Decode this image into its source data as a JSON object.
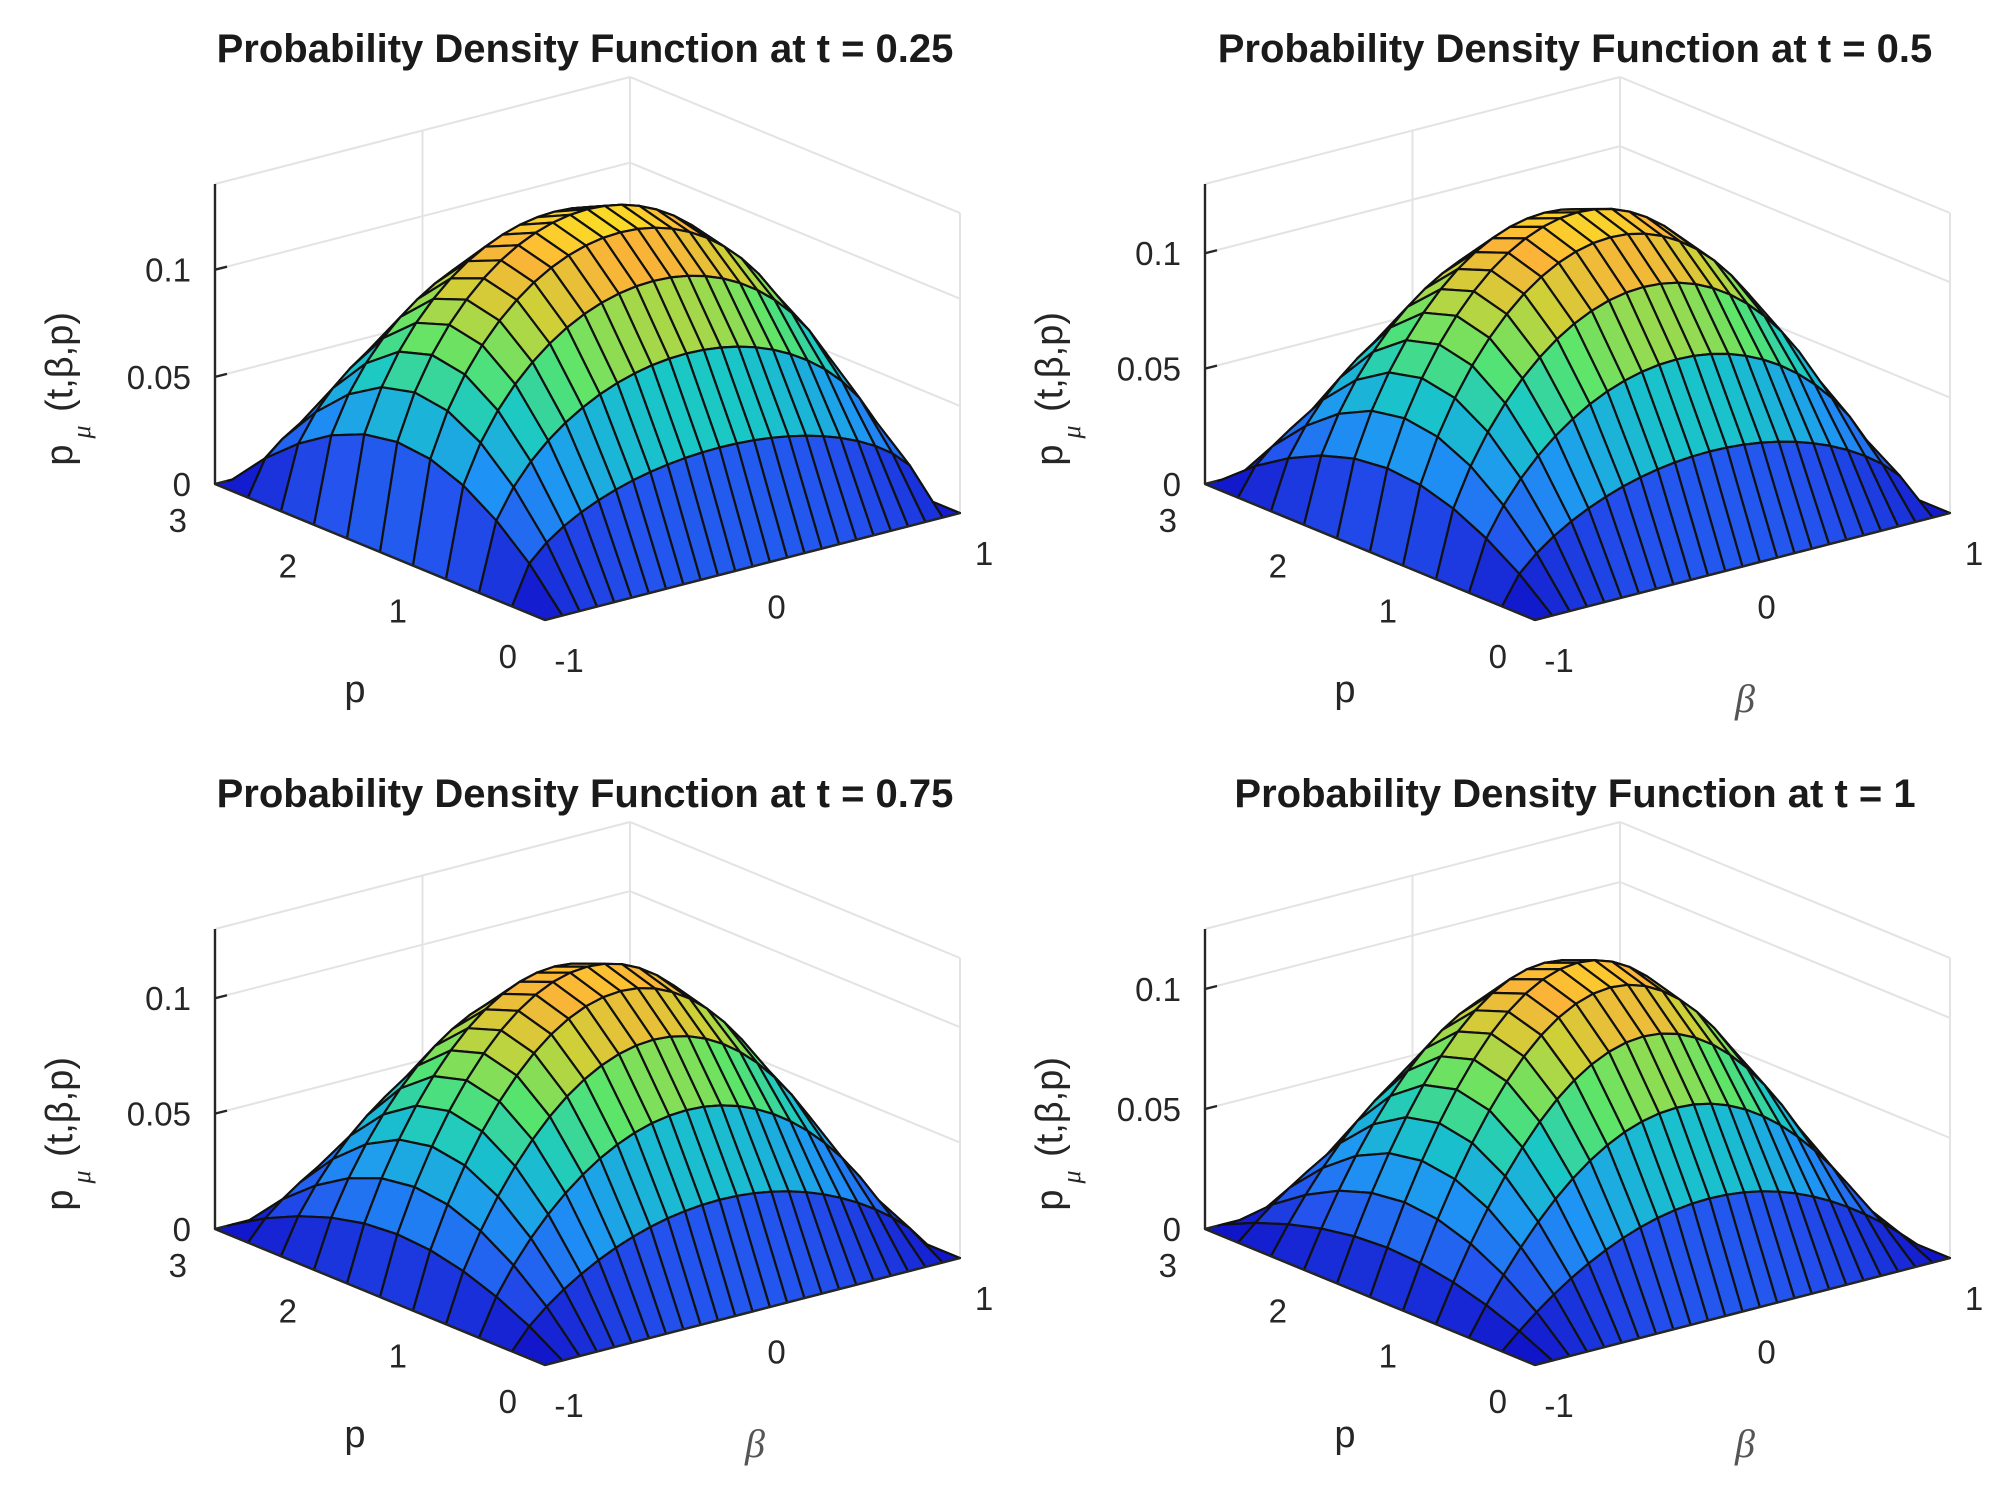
{
  "chart_data": [
    {
      "type": "surface",
      "title": "Probability Density Function at t = 0.25",
      "zlabel": "p",
      "zlabel_sub": "μ",
      "zlabel_rest": "(t,β,p)",
      "plabel": "p",
      "blabel": "",
      "p_ticks": [
        "0",
        "1",
        "2",
        "3"
      ],
      "b_ticks": [
        "-1",
        "0",
        "1"
      ],
      "z_ticks": [
        "0",
        "0.05",
        "0.1"
      ],
      "p_range": [
        0,
        3
      ],
      "beta_range": [
        -1,
        1
      ],
      "z_range": [
        0,
        0.14
      ],
      "peak_density": 0.135,
      "peak_p": 1.4
    },
    {
      "type": "surface",
      "title": "Probability Density Function at t = 0.5",
      "zlabel": "p",
      "zlabel_sub": "μ",
      "zlabel_rest": "(t,β,p)",
      "plabel": "p",
      "blabel": "β",
      "p_ticks": [
        "0",
        "1",
        "2",
        "3"
      ],
      "b_ticks": [
        "-1",
        "0",
        "1"
      ],
      "z_ticks": [
        "0",
        "0.05",
        "0.1"
      ],
      "p_range": [
        0,
        3
      ],
      "beta_range": [
        -1,
        1
      ],
      "z_range": [
        0,
        0.13
      ],
      "peak_density": 0.124,
      "peak_p": 1.6
    },
    {
      "type": "surface",
      "title": "Probability Density Function at t = 0.75",
      "zlabel": "p",
      "zlabel_sub": "μ",
      "zlabel_rest": "(t,β,p)",
      "plabel": "p",
      "blabel": "β",
      "p_ticks": [
        "0",
        "1",
        "2",
        "3"
      ],
      "b_ticks": [
        "-1",
        "0",
        "1"
      ],
      "z_ticks": [
        "0",
        "0.05",
        "0.1"
      ],
      "p_range": [
        0,
        3
      ],
      "beta_range": [
        -1,
        1
      ],
      "z_range": [
        0,
        0.13
      ],
      "peak_density": 0.12,
      "peak_p": 1.7
    },
    {
      "type": "surface",
      "title": "Probability Density Function at t = 1",
      "zlabel": "p",
      "zlabel_sub": "μ",
      "zlabel_rest": "(t,β,p)",
      "plabel": "p",
      "blabel": "β",
      "p_ticks": [
        "0",
        "1",
        "2",
        "3"
      ],
      "b_ticks": [
        "-1",
        "0",
        "1"
      ],
      "z_ticks": [
        "0",
        "0.05",
        "0.1"
      ],
      "p_range": [
        0,
        3
      ],
      "beta_range": [
        -1,
        1
      ],
      "z_range": [
        0,
        0.125
      ],
      "peak_density": 0.117,
      "peak_p": 1.8
    }
  ]
}
